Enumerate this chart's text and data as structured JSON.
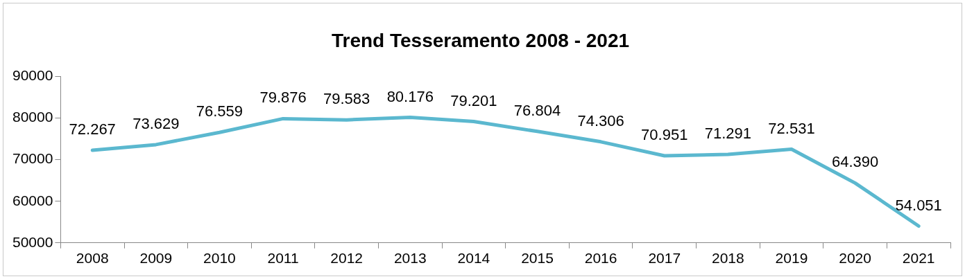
{
  "chart_data": {
    "type": "line",
    "title": "Trend Tesseramento 2008 - 2021",
    "categories": [
      "2008",
      "2009",
      "2010",
      "2011",
      "2012",
      "2013",
      "2014",
      "2015",
      "2016",
      "2017",
      "2018",
      "2019",
      "2020",
      "2021"
    ],
    "series": [
      {
        "color": "#5bb8cf",
        "values": [
          72267,
          73629,
          76559,
          79876,
          79583,
          80176,
          79201,
          76804,
          74306,
          70951,
          71291,
          72531,
          64390,
          54051
        ],
        "value_labels": [
          "72.267",
          "73.629",
          "76.559",
          "79.876",
          "79.583",
          "80.176",
          "79.201",
          "76.804",
          "74.306",
          "70.951",
          "71.291",
          "72.531",
          "64.390",
          "54.051"
        ]
      }
    ],
    "ylim": [
      50000,
      90000
    ],
    "yticks": [
      50000,
      60000,
      70000,
      80000,
      90000
    ],
    "grid": false,
    "legend": false,
    "marker": "none",
    "line_style": "solid"
  }
}
